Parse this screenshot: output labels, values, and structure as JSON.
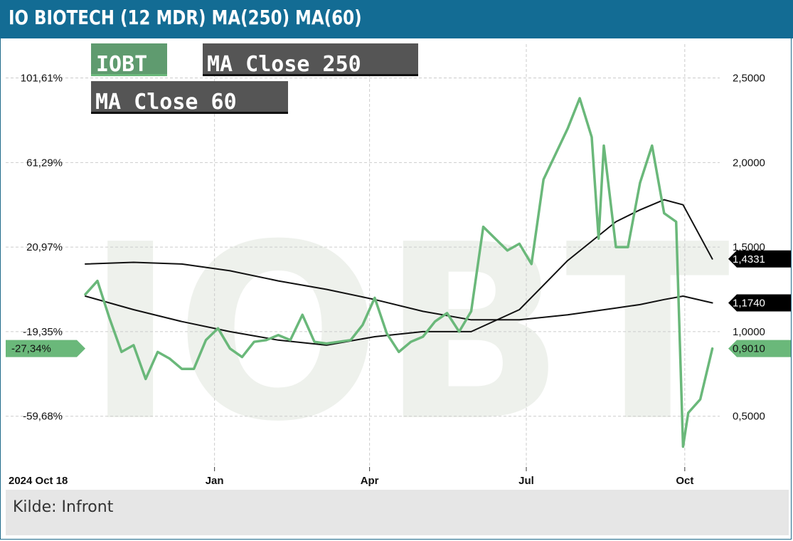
{
  "header": {
    "title": "IO BIOTECH (12 MDR) MA(250) MA(60)"
  },
  "footer": {
    "source": "Kilde: Infront"
  },
  "watermark": "IOBT",
  "legend": [
    {
      "label": "IOBT",
      "color": "#5a9a6e"
    },
    {
      "label": "MA Close 250",
      "color": "#555555"
    },
    {
      "label": "MA Close 60",
      "color": "#555555"
    }
  ],
  "colors": {
    "price": "#6ab87a",
    "ma": "#111111",
    "grid": "#cccccc",
    "title_bg": "#136c94"
  },
  "chart_data": {
    "type": "line",
    "title": "IO BIOTECH (12 MDR) MA(250) MA(60)",
    "x_start": "2024 Oct 18",
    "x_ticks": [
      "Jan",
      "Apr",
      "Jul",
      "Oct"
    ],
    "x_tick_dates": [
      "2025-01-01",
      "2025-04-01",
      "2025-07-01",
      "2025-10-01"
    ],
    "ylim_right": [
      0.2,
      2.7
    ],
    "y_ticks_right": [
      "2,5000",
      "2,0000",
      "1,5000",
      "1,0000",
      "0,5000"
    ],
    "y_tick_values_right": [
      2.5,
      2.0,
      1.5,
      1.0,
      0.5
    ],
    "y_ticks_left": [
      "101,61%",
      "61,29%",
      "20,97%",
      "-19,35%",
      "-59,68%"
    ],
    "current_pct_label": "-27,34%",
    "last_value_labels": {
      "IOBT": "0,9010",
      "MA Close 60": "1,4331",
      "MA Close 250": "1,1740"
    },
    "grid": true,
    "series": [
      {
        "name": "IOBT",
        "x": [
          "2024-10-18",
          "2024-10-25",
          "2024-11-01",
          "2024-11-08",
          "2024-11-15",
          "2024-11-22",
          "2024-11-29",
          "2024-12-06",
          "2024-12-13",
          "2024-12-20",
          "2024-12-27",
          "2025-01-03",
          "2025-01-10",
          "2025-01-17",
          "2025-01-24",
          "2025-01-31",
          "2025-02-07",
          "2025-02-14",
          "2025-02-21",
          "2025-02-28",
          "2025-03-07",
          "2025-03-14",
          "2025-03-21",
          "2025-03-28",
          "2025-04-04",
          "2025-04-11",
          "2025-04-18",
          "2025-04-25",
          "2025-05-02",
          "2025-05-09",
          "2025-05-16",
          "2025-05-23",
          "2025-05-30",
          "2025-06-06",
          "2025-06-13",
          "2025-06-20",
          "2025-06-27",
          "2025-07-04",
          "2025-07-11",
          "2025-07-18",
          "2025-07-25",
          "2025-08-01",
          "2025-08-08",
          "2025-08-12",
          "2025-08-15",
          "2025-08-22",
          "2025-08-29",
          "2025-09-05",
          "2025-09-12",
          "2025-09-19",
          "2025-09-26",
          "2025-09-30",
          "2025-10-03",
          "2025-10-10",
          "2025-10-17"
        ],
        "y": [
          1.22,
          1.3,
          1.08,
          0.88,
          0.92,
          0.72,
          0.88,
          0.84,
          0.78,
          0.78,
          0.95,
          1.02,
          0.9,
          0.85,
          0.94,
          0.95,
          0.98,
          0.95,
          1.1,
          0.94,
          0.93,
          0.94,
          0.95,
          1.04,
          1.2,
          0.99,
          0.88,
          0.94,
          0.97,
          1.06,
          1.11,
          1.0,
          1.12,
          1.62,
          1.55,
          1.48,
          1.52,
          1.4,
          1.9,
          2.05,
          2.2,
          2.38,
          2.15,
          1.55,
          2.1,
          1.5,
          1.5,
          1.88,
          2.1,
          1.7,
          1.65,
          0.32,
          0.52,
          0.6,
          0.9
        ]
      },
      {
        "name": "MA Close 60",
        "x": [
          "2024-10-18",
          "2024-11-15",
          "2024-12-13",
          "2025-01-10",
          "2025-02-07",
          "2025-03-07",
          "2025-04-04",
          "2025-05-02",
          "2025-05-30",
          "2025-06-27",
          "2025-07-25",
          "2025-08-22",
          "2025-09-05",
          "2025-09-19",
          "2025-09-30",
          "2025-10-17"
        ],
        "y": [
          1.21,
          1.13,
          1.06,
          1.0,
          0.95,
          0.92,
          0.97,
          1.0,
          1.0,
          1.13,
          1.42,
          1.65,
          1.72,
          1.78,
          1.75,
          1.43
        ]
      },
      {
        "name": "MA Close 250",
        "x": [
          "2024-10-18",
          "2024-11-15",
          "2024-12-13",
          "2025-01-10",
          "2025-02-07",
          "2025-03-07",
          "2025-04-04",
          "2025-05-02",
          "2025-05-30",
          "2025-06-27",
          "2025-07-25",
          "2025-08-22",
          "2025-09-05",
          "2025-09-19",
          "2025-09-30",
          "2025-10-17"
        ],
        "y": [
          1.4,
          1.41,
          1.4,
          1.36,
          1.3,
          1.25,
          1.19,
          1.12,
          1.07,
          1.07,
          1.1,
          1.14,
          1.16,
          1.19,
          1.21,
          1.17
        ]
      }
    ]
  }
}
